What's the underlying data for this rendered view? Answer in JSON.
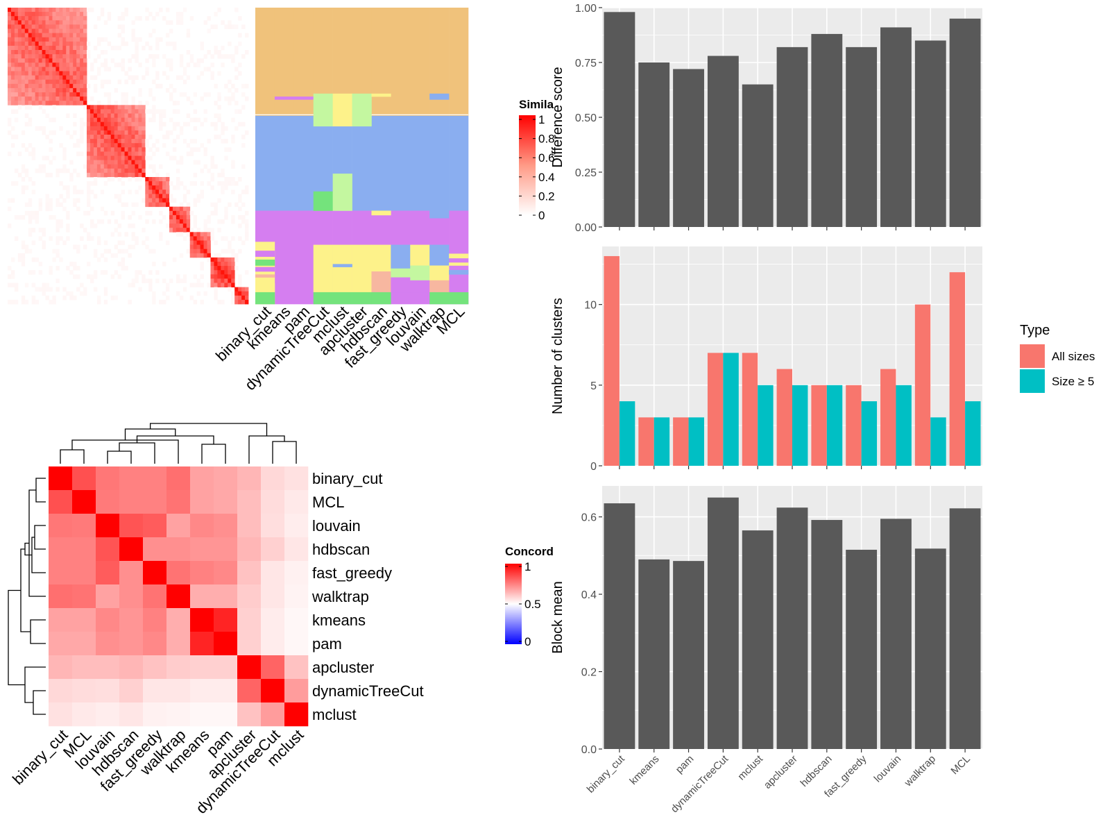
{
  "methods_heatmap_order": [
    "binary_cut",
    "kmeans",
    "pam",
    "dynamicTreeCut",
    "mclust",
    "apcluster",
    "hdbscan",
    "fast_greedy",
    "louvain",
    "walktrap",
    "MCL"
  ],
  "similarity_legend": {
    "title": "Simila",
    "ticks": [
      "1",
      "0.8",
      "0.6",
      "0.4",
      "0.2",
      "0"
    ]
  },
  "concordance_legend": {
    "title": "Concord",
    "ticks": [
      "1",
      "0.5",
      "0"
    ]
  },
  "colors": {
    "panel_bg": "#ebebeb",
    "bar_dark": "#595959",
    "all_sizes": "#f8766d",
    "size5": "#00bfc4",
    "heat_red": "#ff0000"
  },
  "chart_data": [
    {
      "type": "heatmap",
      "name": "term similarity",
      "description_free": true,
      "blocks": [
        {
          "start": 0,
          "end": 0.33,
          "strength": 0.8
        },
        {
          "start": 0.33,
          "end": 0.57,
          "strength": 0.85
        },
        {
          "start": 0.57,
          "end": 0.67,
          "strength": 0.9
        },
        {
          "start": 0.67,
          "end": 0.76,
          "strength": 0.9
        },
        {
          "start": 0.76,
          "end": 0.84,
          "strength": 0.95
        },
        {
          "start": 0.84,
          "end": 0.95,
          "strength": 0.95
        },
        {
          "start": 0.95,
          "end": 1.0,
          "strength": 1.0
        }
      ],
      "legend_range": [
        0,
        1
      ]
    },
    {
      "type": "heatmap",
      "name": "cluster assignments",
      "columns": [
        "binary_cut",
        "kmeans",
        "pam",
        "dynamicTreeCut",
        "mclust",
        "apcluster",
        "hdbscan",
        "fast_greedy",
        "louvain",
        "walktrap",
        "MCL"
      ]
    },
    {
      "type": "heatmap",
      "name": "concordance",
      "rows": [
        "binary_cut",
        "MCL",
        "louvain",
        "hdbscan",
        "fast_greedy",
        "walktrap",
        "kmeans",
        "pam",
        "apcluster",
        "dynamicTreeCut",
        "mclust"
      ],
      "columns": [
        "binary_cut",
        "MCL",
        "louvain",
        "hdbscan",
        "fast_greedy",
        "walktrap",
        "kmeans",
        "pam",
        "apcluster",
        "dynamicTreeCut",
        "mclust"
      ],
      "values": [
        [
          1.0,
          0.85,
          0.75,
          0.72,
          0.72,
          0.77,
          0.62,
          0.6,
          0.55,
          0.4,
          0.35
        ],
        [
          0.85,
          1.0,
          0.74,
          0.72,
          0.72,
          0.76,
          0.62,
          0.6,
          0.52,
          0.38,
          0.3
        ],
        [
          0.75,
          0.74,
          1.0,
          0.84,
          0.82,
          0.62,
          0.7,
          0.68,
          0.52,
          0.37,
          0.27
        ],
        [
          0.72,
          0.72,
          0.84,
          1.0,
          0.68,
          0.68,
          0.66,
          0.66,
          0.55,
          0.44,
          0.32
        ],
        [
          0.72,
          0.72,
          0.82,
          0.68,
          1.0,
          0.76,
          0.72,
          0.7,
          0.5,
          0.32,
          0.24
        ],
        [
          0.77,
          0.76,
          0.62,
          0.68,
          0.76,
          1.0,
          0.58,
          0.58,
          0.46,
          0.32,
          0.22
        ],
        [
          0.62,
          0.62,
          0.7,
          0.66,
          0.72,
          0.58,
          1.0,
          0.95,
          0.44,
          0.28,
          0.18
        ],
        [
          0.6,
          0.6,
          0.68,
          0.66,
          0.7,
          0.58,
          0.95,
          1.0,
          0.44,
          0.28,
          0.18
        ],
        [
          0.55,
          0.52,
          0.52,
          0.55,
          0.5,
          0.46,
          0.44,
          0.44,
          1.0,
          0.8,
          0.5
        ],
        [
          0.4,
          0.38,
          0.37,
          0.44,
          0.32,
          0.32,
          0.28,
          0.28,
          0.8,
          1.0,
          0.64
        ],
        [
          0.35,
          0.3,
          0.27,
          0.32,
          0.24,
          0.22,
          0.18,
          0.18,
          0.5,
          0.64,
          1.0
        ]
      ],
      "legend_range": [
        0,
        1
      ]
    },
    {
      "type": "bar",
      "categories": [
        "binary_cut",
        "kmeans",
        "pam",
        "dynamicTreeCut",
        "mclust",
        "apcluster",
        "hdbscan",
        "fast_greedy",
        "louvain",
        "walktrap",
        "MCL"
      ],
      "values": [
        0.98,
        0.75,
        0.72,
        0.78,
        0.65,
        0.82,
        0.88,
        0.82,
        0.91,
        0.85,
        0.95
      ],
      "ylabel": "Difference score",
      "ylim": [
        0,
        1.0
      ],
      "yticks": [
        "0.00",
        "0.25",
        "0.50",
        "0.75",
        "1.00"
      ],
      "yticks_values": [
        0,
        0.25,
        0.5,
        0.75,
        1.0
      ],
      "grid": true
    },
    {
      "type": "bar",
      "categories": [
        "binary_cut",
        "kmeans",
        "pam",
        "dynamicTreeCut",
        "mclust",
        "apcluster",
        "hdbscan",
        "fast_greedy",
        "louvain",
        "walktrap",
        "MCL"
      ],
      "series": [
        {
          "name": "All sizes",
          "values": [
            13,
            3,
            3,
            7,
            7,
            6,
            5,
            5,
            6,
            10,
            12
          ]
        },
        {
          "name": "Size ≥ 5",
          "values": [
            4,
            3,
            3,
            7,
            5,
            5,
            5,
            4,
            5,
            3,
            4
          ]
        }
      ],
      "ylabel": "Number of clusters",
      "ylim": [
        0,
        13.6
      ],
      "yticks": [
        "0",
        "5",
        "10"
      ],
      "yticks_values": [
        0,
        5,
        10
      ],
      "legend_title": "Type",
      "legend_position": "right",
      "grid": true
    },
    {
      "type": "bar",
      "categories": [
        "binary_cut",
        "kmeans",
        "pam",
        "dynamicTreeCut",
        "mclust",
        "apcluster",
        "hdbscan",
        "fast_greedy",
        "louvain",
        "walktrap",
        "MCL"
      ],
      "values": [
        0.635,
        0.49,
        0.486,
        0.65,
        0.565,
        0.624,
        0.592,
        0.515,
        0.595,
        0.518,
        0.622
      ],
      "ylabel": "Block mean",
      "ylim": [
        0,
        0.68
      ],
      "yticks": [
        "0.0",
        "0.2",
        "0.4",
        "0.6"
      ],
      "yticks_values": [
        0,
        0.2,
        0.4,
        0.6
      ],
      "grid": true
    }
  ]
}
